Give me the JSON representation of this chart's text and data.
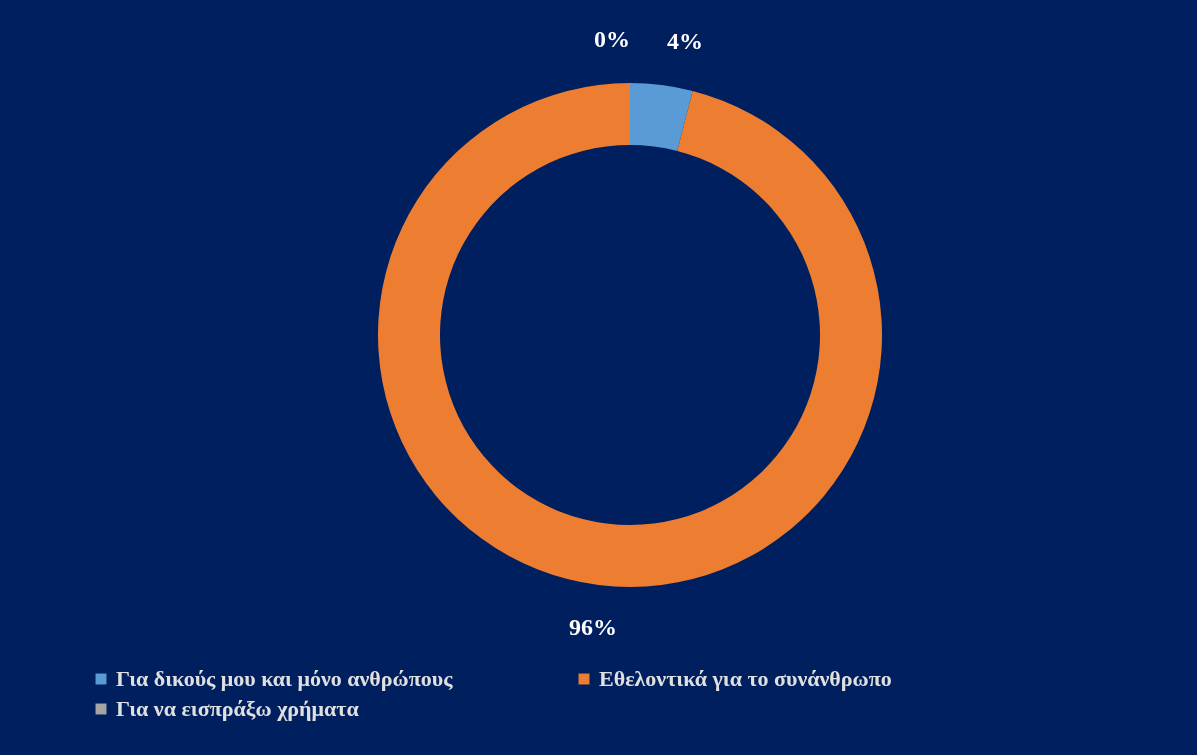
{
  "chart_data": {
    "type": "donut",
    "categories": [
      "Για δικούς μου και μόνο ανθρώπους",
      "Εθελοντικά για το συνάνθρωπο",
      "Για να εισπράξω χρήματα"
    ],
    "values": [
      4,
      96,
      0
    ],
    "colors": [
      "#5b9bd5",
      "#ed7d31",
      "#a5a5a5"
    ],
    "value_labels": [
      "4%",
      "96%",
      "0%"
    ],
    "legend": "bottom"
  }
}
